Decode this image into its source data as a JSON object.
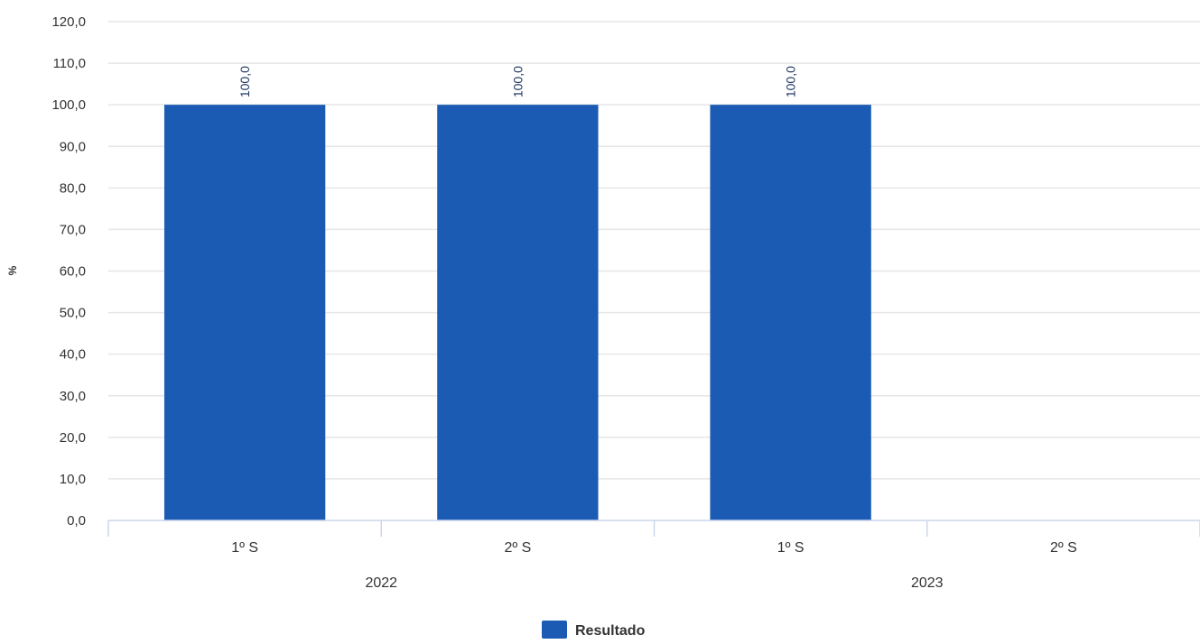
{
  "chart_data": {
    "type": "bar",
    "title": "",
    "xlabel": "",
    "ylabel": "%",
    "ylim": [
      0,
      120
    ],
    "y_ticks": [
      "0,0",
      "10,0",
      "20,0",
      "30,0",
      "40,0",
      "50,0",
      "60,0",
      "70,0",
      "80,0",
      "90,0",
      "100,0",
      "110,0",
      "120,0"
    ],
    "categories": [
      "1º S",
      "2º S",
      "1º S",
      "2º S"
    ],
    "groups": [
      {
        "label": "2022",
        "categories": [
          "1º S",
          "2º S"
        ]
      },
      {
        "label": "2023",
        "categories": [
          "1º S",
          "2º S"
        ]
      }
    ],
    "series": [
      {
        "name": "Resultado",
        "color": "#1b5bb4",
        "values": [
          100.0,
          100.0,
          100.0,
          null
        ],
        "data_labels": [
          "100,0",
          "100,0",
          "100,0",
          ""
        ]
      }
    ],
    "grid": true,
    "legend": "bottom-center"
  }
}
